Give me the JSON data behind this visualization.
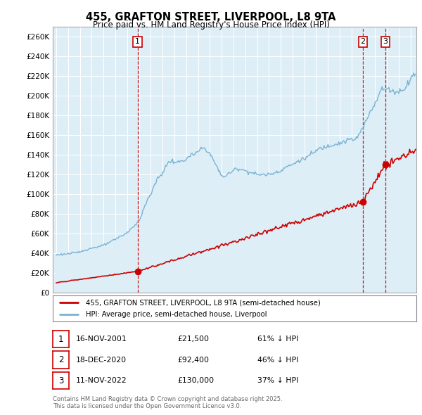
{
  "title": "455, GRAFTON STREET, LIVERPOOL, L8 9TA",
  "subtitle": "Price paid vs. HM Land Registry's House Price Index (HPI)",
  "ylabel_ticks": [
    "£0",
    "£20K",
    "£40K",
    "£60K",
    "£80K",
    "£100K",
    "£120K",
    "£140K",
    "£160K",
    "£180K",
    "£200K",
    "£220K",
    "£240K",
    "£260K"
  ],
  "ytick_values": [
    0,
    20000,
    40000,
    60000,
    80000,
    100000,
    120000,
    140000,
    160000,
    180000,
    200000,
    220000,
    240000,
    260000
  ],
  "ylim": [
    0,
    270000
  ],
  "xlim_start": 1994.7,
  "xlim_end": 2025.5,
  "hpi_color": "#7ab3d4",
  "hpi_fill_color": "#ddeef7",
  "sale_color": "#cc0000",
  "legend_entries": [
    "455, GRAFTON STREET, LIVERPOOL, L8 9TA (semi-detached house)",
    "HPI: Average price, semi-detached house, Liverpool"
  ],
  "transactions": [
    {
      "num": 1,
      "date": "16-NOV-2001",
      "price": 21500,
      "x": 2001.88,
      "pct": "61% ↓ HPI"
    },
    {
      "num": 2,
      "date": "18-DEC-2020",
      "price": 92400,
      "x": 2020.96,
      "pct": "46% ↓ HPI"
    },
    {
      "num": 3,
      "date": "11-NOV-2022",
      "price": 130000,
      "x": 2022.86,
      "pct": "37% ↓ HPI"
    }
  ],
  "table_rows": [
    {
      "num": "1",
      "date": "16-NOV-2001",
      "price": "£21,500",
      "pct": "61% ↓ HPI"
    },
    {
      "num": "2",
      "date": "18-DEC-2020",
      "price": "£92,400",
      "pct": "46% ↓ HPI"
    },
    {
      "num": "3",
      "date": "11-NOV-2022",
      "price": "£130,000",
      "pct": "37% ↓ HPI"
    }
  ],
  "footer": "Contains HM Land Registry data © Crown copyright and database right 2025.\nThis data is licensed under the Open Government Licence v3.0.",
  "background_color": "#ffffff",
  "plot_bg_color": "#ddeef7",
  "grid_color": "#aaccdd",
  "vline_color": "#cc0000",
  "hpi_monthly": {
    "1995-01": 38500,
    "1995-04": 38800,
    "1995-07": 39000,
    "1995-10": 39200,
    "1996-01": 39500,
    "1996-04": 39800,
    "1996-07": 40200,
    "1996-10": 40600,
    "1997-01": 41500,
    "1997-04": 42500,
    "1997-07": 43500,
    "1997-10": 44500,
    "1998-01": 45000,
    "1998-04": 46000,
    "1998-07": 46500,
    "1998-10": 47000,
    "1999-01": 48000,
    "1999-04": 49500,
    "1999-07": 51000,
    "1999-10": 52500,
    "2000-01": 54000,
    "2000-04": 56000,
    "2000-07": 57500,
    "2000-10": 59000,
    "2001-01": 61000,
    "2001-04": 64000,
    "2001-07": 67000,
    "2001-10": 69000,
    "2002-01": 73000,
    "2002-04": 80000,
    "2002-07": 88000,
    "2002-10": 95000,
    "2003-01": 100000,
    "2003-04": 108000,
    "2003-07": 114000,
    "2003-10": 118000,
    "2004-01": 122000,
    "2004-04": 128000,
    "2004-07": 132000,
    "2004-10": 134000,
    "2005-01": 133000,
    "2005-04": 132000,
    "2005-07": 133000,
    "2005-10": 134000,
    "2006-01": 136000,
    "2006-04": 138000,
    "2006-07": 140000,
    "2006-10": 141000,
    "2007-01": 143000,
    "2007-04": 146000,
    "2007-07": 147000,
    "2007-10": 145000,
    "2008-01": 141000,
    "2008-04": 136000,
    "2008-07": 130000,
    "2008-10": 124000,
    "2009-01": 119000,
    "2009-04": 118000,
    "2009-07": 120000,
    "2009-10": 122000,
    "2010-01": 124000,
    "2010-04": 126000,
    "2010-07": 126000,
    "2010-10": 125000,
    "2011-01": 124000,
    "2011-04": 123000,
    "2011-07": 122000,
    "2011-10": 121000,
    "2012-01": 120000,
    "2012-04": 120000,
    "2012-07": 120000,
    "2012-10": 120000,
    "2013-01": 120000,
    "2013-04": 121000,
    "2013-07": 122000,
    "2013-10": 123000,
    "2014-01": 124000,
    "2014-04": 126000,
    "2014-07": 128000,
    "2014-10": 129000,
    "2015-01": 130000,
    "2015-04": 132000,
    "2015-07": 134000,
    "2015-10": 135000,
    "2016-01": 136000,
    "2016-04": 138000,
    "2016-07": 140000,
    "2016-10": 142000,
    "2017-01": 144000,
    "2017-04": 146000,
    "2017-07": 147000,
    "2017-10": 148000,
    "2018-01": 149000,
    "2018-04": 150000,
    "2018-07": 151000,
    "2018-10": 151500,
    "2019-01": 152000,
    "2019-04": 153000,
    "2019-07": 154000,
    "2019-10": 155000,
    "2020-01": 156000,
    "2020-04": 155000,
    "2020-07": 158000,
    "2020-10": 163000,
    "2021-01": 168000,
    "2021-04": 175000,
    "2021-07": 182000,
    "2021-10": 188000,
    "2022-01": 193000,
    "2022-04": 200000,
    "2022-07": 206000,
    "2022-10": 207000,
    "2023-01": 207000,
    "2023-04": 206000,
    "2023-07": 205000,
    "2023-10": 204000,
    "2024-01": 204000,
    "2024-04": 206000,
    "2024-07": 208000,
    "2024-10": 212000,
    "2025-01": 218000,
    "2025-04": 222000
  }
}
